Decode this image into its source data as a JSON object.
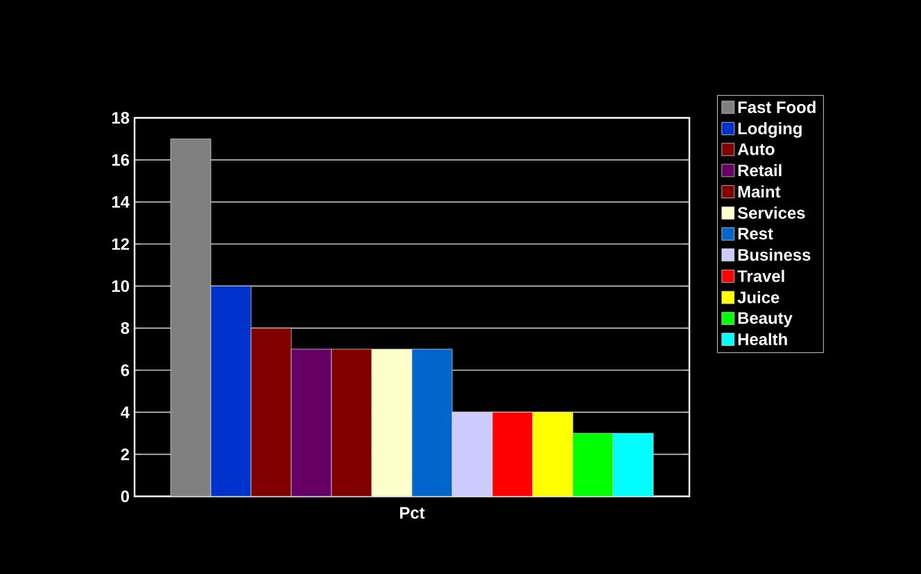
{
  "chart_data": {
    "type": "bar",
    "categories": [
      "Pct"
    ],
    "series": [
      {
        "name": "Fast Food",
        "color": "#808080",
        "values": [
          17
        ]
      },
      {
        "name": "Lodging",
        "color": "#0033cc",
        "values": [
          10
        ]
      },
      {
        "name": "Auto",
        "color": "#800000",
        "values": [
          8
        ]
      },
      {
        "name": "Retail",
        "color": "#660066",
        "values": [
          7
        ]
      },
      {
        "name": "Maint",
        "color": "#800000",
        "values": [
          7
        ]
      },
      {
        "name": "Services",
        "color": "#ffffcc",
        "values": [
          7
        ]
      },
      {
        "name": "Rest",
        "color": "#0066cc",
        "values": [
          7
        ]
      },
      {
        "name": "Business",
        "color": "#ccccff",
        "values": [
          4
        ]
      },
      {
        "name": "Travel",
        "color": "#ff0000",
        "values": [
          4
        ]
      },
      {
        "name": "Juice",
        "color": "#ffff00",
        "values": [
          4
        ]
      },
      {
        "name": "Beauty",
        "color": "#00ff00",
        "values": [
          3
        ]
      },
      {
        "name": "Health",
        "color": "#00ffff",
        "values": [
          3
        ]
      }
    ],
    "ylim": [
      0,
      18
    ],
    "yticks": [
      0,
      2,
      4,
      6,
      8,
      10,
      12,
      14,
      16,
      18
    ],
    "grid": "y",
    "legend": "right"
  }
}
